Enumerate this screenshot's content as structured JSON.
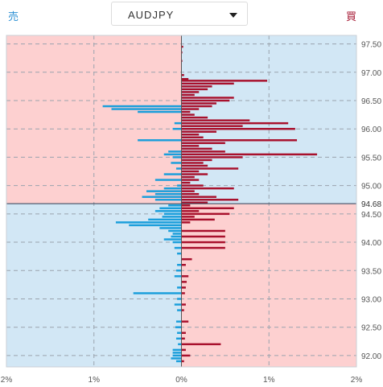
{
  "header": {
    "sell_label": "売",
    "buy_label": "買",
    "pair": "AUDJPY"
  },
  "colors": {
    "sell_bar": "#1a9edb",
    "buy_bar": "#a8102c",
    "sell_bg": "#d2e7f5",
    "buy_bg": "#fdd0d0",
    "current_line": "#2b3e55"
  },
  "chart_data": {
    "type": "bar",
    "orientation": "horizontal",
    "title": "",
    "current_price": 94.68,
    "current_price_label": "94.68",
    "ylim": [
      91.8,
      97.65
    ],
    "xlim": [
      -2,
      2
    ],
    "y_ticks": [
      92.0,
      92.5,
      93.0,
      93.5,
      94.0,
      94.5,
      95.0,
      95.5,
      96.0,
      96.5,
      97.0,
      97.5
    ],
    "y_tick_labels": [
      "92.00",
      "92.50",
      "93.00",
      "93.50",
      "94.00",
      "94.50",
      "95.00",
      "95.50",
      "96.00",
      "96.50",
      "97.00",
      "97.50"
    ],
    "x_ticks": [
      -2,
      -1,
      0,
      1,
      2
    ],
    "x_tick_labels": [
      "2%",
      "1%",
      "0%",
      "1%",
      "2%"
    ],
    "series": [
      {
        "name": "買",
        "side": "buy",
        "points": [
          [
            97.45,
            0.02
          ],
          [
            97.35,
            0.01
          ],
          [
            97.2,
            0.01
          ],
          [
            96.95,
            0.03
          ],
          [
            96.88,
            0.08
          ],
          [
            96.85,
            0.98
          ],
          [
            96.8,
            0.6
          ],
          [
            96.75,
            0.35
          ],
          [
            96.7,
            0.3
          ],
          [
            96.65,
            0.2
          ],
          [
            96.6,
            0.15
          ],
          [
            96.55,
            0.6
          ],
          [
            96.5,
            0.55
          ],
          [
            96.45,
            0.4
          ],
          [
            96.4,
            0.35
          ],
          [
            96.35,
            0.2
          ],
          [
            96.3,
            0.1
          ],
          [
            96.25,
            0.15
          ],
          [
            96.2,
            0.3
          ],
          [
            96.15,
            0.78
          ],
          [
            96.1,
            1.22
          ],
          [
            96.05,
            0.7
          ],
          [
            96.0,
            1.3
          ],
          [
            95.95,
            0.4
          ],
          [
            95.9,
            0.2
          ],
          [
            95.85,
            0.25
          ],
          [
            95.8,
            1.32
          ],
          [
            95.75,
            0.5
          ],
          [
            95.7,
            0.2
          ],
          [
            95.65,
            0.35
          ],
          [
            95.6,
            0.5
          ],
          [
            95.55,
            1.55
          ],
          [
            95.5,
            0.7
          ],
          [
            95.45,
            0.35
          ],
          [
            95.4,
            0.25
          ],
          [
            95.35,
            0.3
          ],
          [
            95.3,
            0.65
          ],
          [
            95.25,
            0.2
          ],
          [
            95.2,
            0.3
          ],
          [
            95.15,
            0.15
          ],
          [
            95.1,
            0.2
          ],
          [
            95.05,
            0.1
          ],
          [
            95.0,
            0.25
          ],
          [
            94.95,
            0.6
          ],
          [
            94.9,
            0.15
          ],
          [
            94.85,
            0.2
          ],
          [
            94.8,
            0.4
          ],
          [
            94.75,
            0.65
          ],
          [
            94.7,
            0.3
          ],
          [
            94.65,
            0.1
          ],
          [
            94.6,
            0.6
          ],
          [
            94.55,
            0.2
          ],
          [
            94.5,
            0.55
          ],
          [
            94.45,
            0.15
          ],
          [
            94.4,
            0.38
          ],
          [
            94.35,
            0.1
          ],
          [
            94.2,
            0.5
          ],
          [
            94.1,
            0.5
          ],
          [
            94.0,
            0.5
          ],
          [
            93.9,
            0.5
          ],
          [
            93.7,
            0.12
          ],
          [
            93.6,
            0.05
          ],
          [
            93.4,
            0.08
          ],
          [
            93.3,
            0.06
          ],
          [
            93.2,
            0.05
          ],
          [
            93.1,
            0.04
          ],
          [
            92.9,
            0.05
          ],
          [
            92.8,
            0.03
          ],
          [
            92.6,
            0.08
          ],
          [
            92.4,
            0.05
          ],
          [
            92.3,
            0.04
          ],
          [
            92.2,
            0.45
          ],
          [
            92.1,
            0.05
          ],
          [
            92.0,
            0.1
          ],
          [
            91.9,
            0.03
          ]
        ]
      },
      {
        "name": "売",
        "side": "sell",
        "points": [
          [
            96.4,
            0.9
          ],
          [
            96.35,
            0.8
          ],
          [
            96.3,
            0.5
          ],
          [
            96.1,
            0.08
          ],
          [
            96.0,
            0.1
          ],
          [
            95.8,
            0.5
          ],
          [
            95.6,
            0.15
          ],
          [
            95.55,
            0.2
          ],
          [
            95.5,
            0.1
          ],
          [
            95.4,
            0.12
          ],
          [
            95.3,
            0.06
          ],
          [
            95.2,
            0.2
          ],
          [
            95.1,
            0.3
          ],
          [
            95.0,
            0.05
          ],
          [
            94.95,
            0.2
          ],
          [
            94.9,
            0.4
          ],
          [
            94.85,
            0.3
          ],
          [
            94.8,
            0.45
          ],
          [
            94.75,
            0.3
          ],
          [
            94.65,
            0.15
          ],
          [
            94.6,
            0.25
          ],
          [
            94.55,
            0.3
          ],
          [
            94.5,
            0.2
          ],
          [
            94.45,
            0.22
          ],
          [
            94.4,
            0.38
          ],
          [
            94.35,
            0.75
          ],
          [
            94.3,
            0.6
          ],
          [
            94.25,
            0.25
          ],
          [
            94.2,
            0.15
          ],
          [
            94.15,
            0.1
          ],
          [
            94.1,
            0.12
          ],
          [
            94.05,
            0.2
          ],
          [
            94.0,
            0.1
          ],
          [
            93.9,
            0.08
          ],
          [
            93.8,
            0.05
          ],
          [
            93.6,
            0.05
          ],
          [
            93.5,
            0.06
          ],
          [
            93.4,
            0.08
          ],
          [
            93.2,
            0.05
          ],
          [
            93.1,
            0.55
          ],
          [
            93.0,
            0.05
          ],
          [
            92.9,
            0.08
          ],
          [
            92.8,
            0.05
          ],
          [
            92.6,
            0.06
          ],
          [
            92.5,
            0.07
          ],
          [
            92.4,
            0.05
          ],
          [
            92.3,
            0.06
          ],
          [
            92.2,
            0.04
          ],
          [
            92.1,
            0.1
          ],
          [
            92.05,
            0.1
          ],
          [
            92.0,
            0.1
          ],
          [
            91.95,
            0.12
          ],
          [
            91.9,
            0.06
          ]
        ]
      }
    ],
    "grid": true,
    "legend": "none"
  }
}
